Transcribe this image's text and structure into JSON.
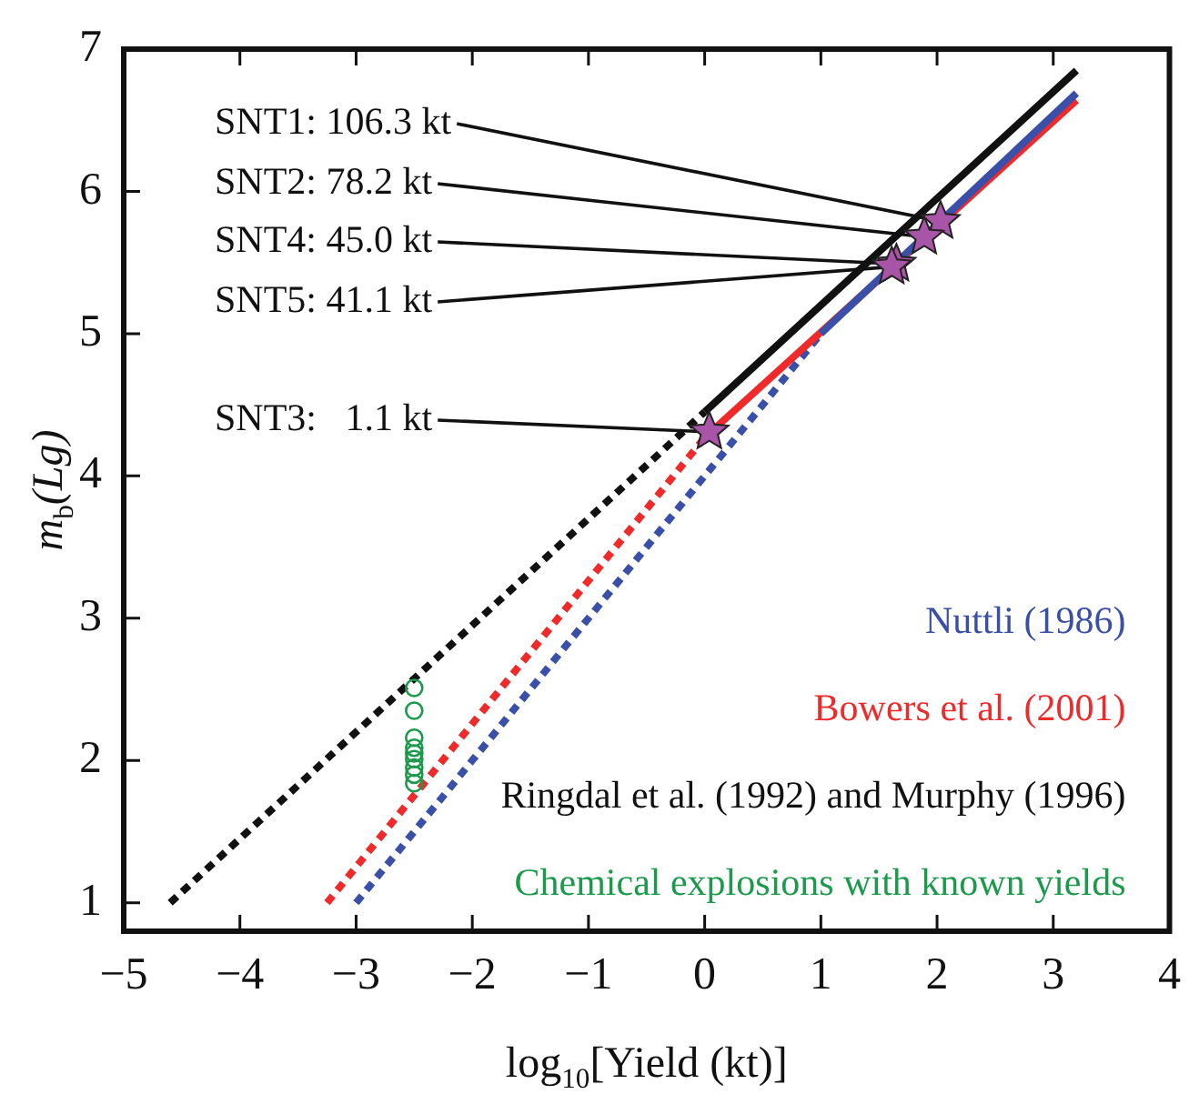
{
  "chart_data": {
    "type": "line",
    "xlabel": "log$_{10}$[Yield (kt)]",
    "ylabel": "m$_{b}$(Lg)",
    "xlim": [
      -5,
      4
    ],
    "xticks": [
      {
        "value": -5,
        "label": "−5"
      },
      {
        "value": -4,
        "label": "−4"
      },
      {
        "value": -3,
        "label": "−3"
      },
      {
        "value": -2,
        "label": "−2"
      },
      {
        "value": -1,
        "label": "−1"
      },
      0,
      1,
      2,
      3,
      4
    ],
    "ylim": [
      0.8,
      7
    ],
    "yticks": [
      1,
      2,
      3,
      4,
      5,
      6,
      7
    ],
    "grid": false,
    "legend": "bottom right",
    "marker": "none",
    "series": [
      {
        "name": "Nuttli (1986)",
        "color": "#3a4fa8",
        "x": [
          1.0,
          3.2
        ],
        "values": [
          5.0,
          6.69
        ],
        "line_style": "solid"
      },
      {
        "name": "Bowers et al. (2001)",
        "color": "#ee2a2a",
        "x": [
          0.0,
          3.2
        ],
        "values": [
          4.27,
          6.64
        ],
        "line_style": "solid"
      },
      {
        "name": "Ringdal et al. (1992) and Murphy (1996)",
        "color": "#111111",
        "x": [
          0.0,
          3.2
        ],
        "values": [
          4.45,
          6.85
        ],
        "line_style": "solid"
      },
      {
        "name": "Chemical explosions with known yields",
        "type": "scatter",
        "marker": "circle",
        "color": "#1a9a4a",
        "x": [
          -2.5,
          -2.5,
          -2.5,
          -2.5,
          -2.5,
          -2.5,
          -2.5,
          -2.5,
          -2.5
        ],
        "values": [
          2.51,
          2.35,
          2.16,
          2.09,
          2.05,
          2.01,
          1.95,
          1.9,
          1.84
        ]
      },
      {
        "color": "#3a4fa8",
        "x": [
          -3.0,
          1.0
        ],
        "values": [
          1.0,
          5.0
        ],
        "line_style": "dotted"
      },
      {
        "color": "#ee2a2a",
        "x": [
          -3.25,
          0.0
        ],
        "values": [
          1.0,
          4.27
        ],
        "line_style": "dotted"
      },
      {
        "color": "#111111",
        "x": [
          -4.6,
          0.0
        ],
        "values": [
          1.0,
          4.45
        ],
        "line_style": "dotted"
      },
      {
        "type": "scatter",
        "marker": "star",
        "color": "#a855a8",
        "x": [
          2.03,
          1.89,
          1.65,
          1.61,
          0.04
        ],
        "values": [
          5.79,
          5.68,
          5.49,
          5.47,
          4.31
        ]
      }
    ],
    "annotations": [
      {
        "text": "SNT1: 106.3 kt",
        "x": 2.03,
        "y": 5.79
      },
      {
        "text": "SNT2: 78.2 kt",
        "x": 1.89,
        "y": 5.68
      },
      {
        "text": "SNT4: 45.0 kt",
        "x": 1.65,
        "y": 5.49
      },
      {
        "text": "SNT5: 41.1 kt",
        "x": 1.61,
        "y": 5.47
      },
      {
        "text": "SNT3:   1.1 kt",
        "x": 0.04,
        "y": 4.31
      }
    ]
  }
}
